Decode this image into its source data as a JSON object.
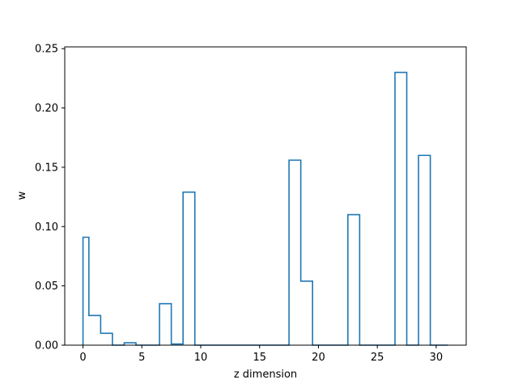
{
  "chart_data": {
    "type": "step",
    "xlabel": "z dimension",
    "ylabel": "w",
    "xlim": [
      -1.55,
      32.55
    ],
    "ylim": [
      0,
      0.2515
    ],
    "xticks": [
      0,
      5,
      10,
      15,
      20,
      25,
      30
    ],
    "xtick_labels": [
      "0",
      "5",
      "10",
      "15",
      "20",
      "25",
      "30"
    ],
    "yticks": [
      0,
      0.05,
      0.1,
      0.15,
      0.2,
      0.25
    ],
    "ytick_labels": [
      "0.00",
      "0.05",
      "0.10",
      "0.15",
      "0.20",
      "0.25"
    ],
    "grid": false,
    "line_color": "#1f77b4",
    "x": [
      0,
      1,
      2,
      3,
      4,
      5,
      6,
      7,
      8,
      9,
      10,
      11,
      12,
      13,
      14,
      15,
      16,
      17,
      18,
      19,
      20,
      21,
      22,
      23,
      24,
      25,
      26,
      27,
      28,
      29,
      30,
      31
    ],
    "values": [
      0.091,
      0.025,
      0.01,
      0.0,
      0.002,
      0.0,
      0.0,
      0.035,
      0.001,
      0.129,
      0.0,
      0.0,
      0.0,
      0.0,
      0.0,
      0.0,
      0.0,
      0.0,
      0.156,
      0.054,
      0.0,
      0.0,
      0.0,
      0.11,
      0.0,
      0.0,
      0.0,
      0.23,
      0.0,
      0.16,
      0.0,
      0.0
    ]
  }
}
